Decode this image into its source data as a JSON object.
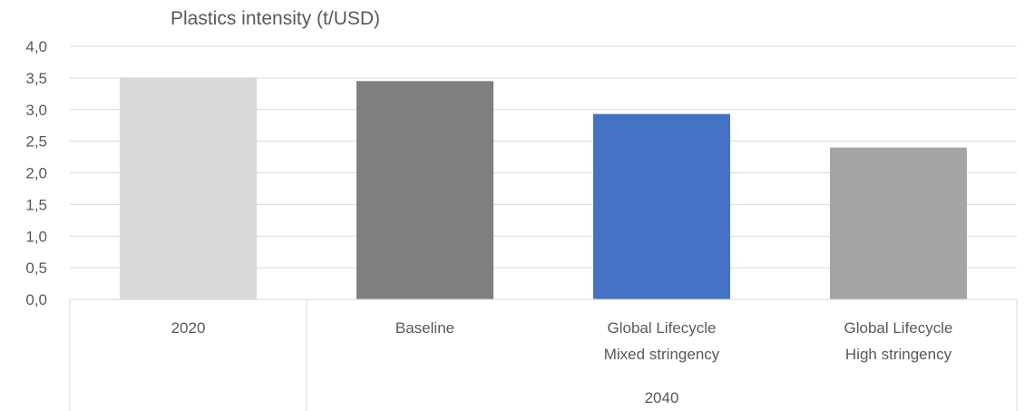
{
  "chart_data": {
    "type": "bar",
    "title": "Plastics intensity (t/USD)",
    "xlabel": "",
    "ylabel": "",
    "ylim": [
      0,
      4.0
    ],
    "yticks": [
      "0,0",
      "0,5",
      "1,0",
      "1,5",
      "2,0",
      "2,5",
      "3,0",
      "3,5",
      "4,0"
    ],
    "categories": [
      {
        "label_lines": [
          "2020"
        ],
        "value": 3.5,
        "color": "#D9D9D9"
      },
      {
        "label_lines": [
          "Baseline"
        ],
        "value": 3.45,
        "color": "#7F7F7F"
      },
      {
        "label_lines": [
          "Global Lifecycle",
          "Mixed stringency"
        ],
        "value": 2.93,
        "color": "#4472C4"
      },
      {
        "label_lines": [
          "Global Lifecycle",
          "High stringency"
        ],
        "value": 2.4,
        "color": "#A5A5A5"
      }
    ],
    "groups": [
      {
        "label": "",
        "span": [
          0,
          0
        ]
      },
      {
        "label": "2040",
        "span": [
          1,
          3
        ]
      }
    ],
    "grid": true,
    "legend": "none"
  },
  "colors": {
    "gridline": "#D9D9D9",
    "axis_text": "#595959"
  }
}
